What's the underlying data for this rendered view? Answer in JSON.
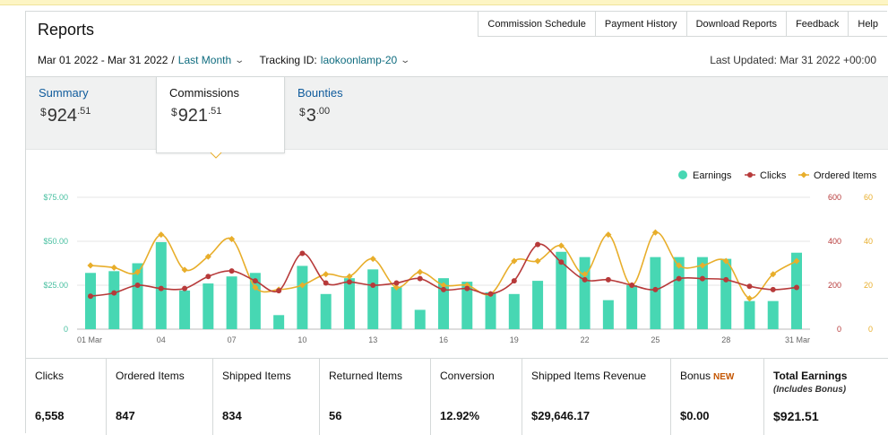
{
  "header": {
    "title": "Reports",
    "links": [
      "Commission Schedule",
      "Payment History",
      "Download Reports",
      "Feedback",
      "Help"
    ],
    "date_range": "Mar 01 2022 - Mar 31 2022",
    "range_separator": "/",
    "range_option": "Last Month",
    "tracking_label": "Tracking ID:",
    "tracking_id": "laokoonlamp-20",
    "last_updated": "Last Updated: Mar 31 2022 +00:00"
  },
  "tabs": [
    {
      "label": "Summary",
      "currency": "$",
      "whole": "924",
      "cents": "51",
      "active": false
    },
    {
      "label": "Commissions",
      "currency": "$",
      "whole": "921",
      "cents": "51",
      "active": true
    },
    {
      "label": "Bounties",
      "currency": "$",
      "whole": "3",
      "cents": "00",
      "active": false
    }
  ],
  "chart_data": {
    "type": "bar",
    "legend": [
      {
        "name": "Earnings",
        "color": "#47d7b3"
      },
      {
        "name": "Clicks",
        "color": "#b73a3a"
      },
      {
        "name": "Ordered Items",
        "color": "#e8ae2b"
      }
    ],
    "legend_position": "top-right",
    "grid": true,
    "x_tick_labels": [
      "01 Mar",
      "04",
      "07",
      "10",
      "13",
      "16",
      "19",
      "22",
      "25",
      "28",
      "31 Mar"
    ],
    "x_tick_days": [
      1,
      4,
      7,
      10,
      13,
      16,
      19,
      22,
      25,
      28,
      31
    ],
    "y_left": {
      "ticks": [
        "0",
        "$25.00",
        "$50.00",
        "$75.00"
      ],
      "range": [
        0,
        75
      ]
    },
    "y_right_clicks": {
      "ticks": [
        "0",
        "200",
        "400",
        "600"
      ],
      "range": [
        0,
        600
      ]
    },
    "y_right_items": {
      "ticks": [
        "0",
        "20",
        "40",
        "60"
      ],
      "range": [
        0,
        60
      ]
    },
    "days": [
      1,
      2,
      3,
      4,
      5,
      6,
      7,
      8,
      9,
      10,
      11,
      12,
      13,
      14,
      15,
      16,
      17,
      18,
      19,
      20,
      21,
      22,
      23,
      24,
      25,
      26,
      27,
      28,
      29,
      30,
      31
    ],
    "series": [
      {
        "name": "Earnings",
        "axis": "left",
        "values": [
          32,
          33,
          37.5,
          49.5,
          22,
          26,
          30,
          32,
          8,
          36,
          20,
          29,
          34,
          24,
          11,
          29,
          27,
          21,
          20,
          27.5,
          44,
          41,
          16.5,
          25,
          41,
          41,
          41,
          40,
          16,
          16,
          43.5
        ]
      },
      {
        "name": "Clicks",
        "axis": "clicks",
        "values": [
          150,
          165,
          200,
          185,
          185,
          240,
          265,
          220,
          175,
          345,
          210,
          215,
          200,
          210,
          230,
          180,
          185,
          160,
          220,
          385,
          305,
          225,
          225,
          200,
          180,
          230,
          230,
          225,
          195,
          180,
          190
        ]
      },
      {
        "name": "Ordered Items",
        "axis": "items",
        "values": [
          29,
          28,
          26,
          43,
          27,
          33,
          41,
          19,
          18,
          20,
          25,
          24,
          32,
          19,
          26,
          20,
          20,
          16,
          31,
          31,
          38,
          25,
          43,
          20,
          44,
          29,
          29,
          31,
          14,
          25,
          31
        ]
      }
    ]
  },
  "stats": [
    {
      "label": "Clicks",
      "value": "6,558"
    },
    {
      "label": "Ordered Items",
      "value": "847"
    },
    {
      "label": "Shipped Items",
      "value": "834"
    },
    {
      "label": "Returned Items",
      "value": "56"
    },
    {
      "label": "Conversion",
      "value": "12.92%"
    },
    {
      "label": "Shipped Items Revenue",
      "value": "$29,646.17"
    },
    {
      "label": "Bonus",
      "badge": "NEW",
      "value": "$0.00"
    },
    {
      "label": "Total Earnings",
      "sublabel": "(Includes Bonus)",
      "value": "$921.51"
    }
  ]
}
